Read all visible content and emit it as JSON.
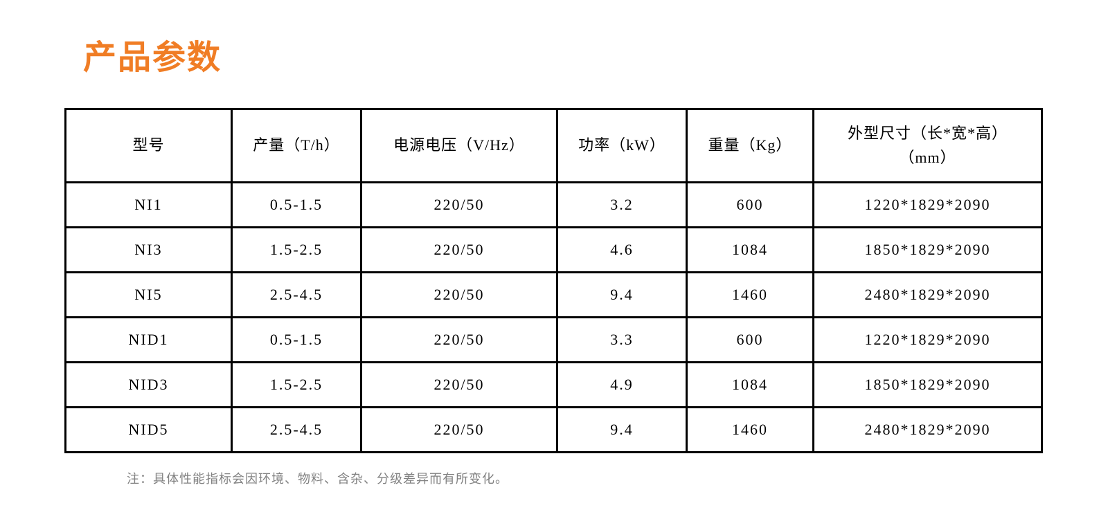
{
  "title": "产品参数",
  "table": {
    "columns": [
      "型号",
      "产量（T/h）",
      "电源电压（V/Hz）",
      "功率（kW）",
      "重量（Kg）",
      "外型尺寸（长*宽*高）\n（mm）"
    ],
    "rows": [
      [
        "NI1",
        "0.5-1.5",
        "220/50",
        "3.2",
        "600",
        "1220*1829*2090"
      ],
      [
        "NI3",
        "1.5-2.5",
        "220/50",
        "4.6",
        "1084",
        "1850*1829*2090"
      ],
      [
        "NI5",
        "2.5-4.5",
        "220/50",
        "9.4",
        "1460",
        "2480*1829*2090"
      ],
      [
        "NID1",
        "0.5-1.5",
        "220/50",
        "3.3",
        "600",
        "1220*1829*2090"
      ],
      [
        "NID3",
        "1.5-2.5",
        "220/50",
        "4.9",
        "1084",
        "1850*1829*2090"
      ],
      [
        "NID5",
        "2.5-4.5",
        "220/50",
        "9.4",
        "1460",
        "2480*1829*2090"
      ]
    ]
  },
  "note": "注：具体性能指标会因环境、物料、含杂、分级差异而有所变化。",
  "colors": {
    "title": "#F07D25",
    "note": "#818181",
    "table_border": "#000000"
  }
}
